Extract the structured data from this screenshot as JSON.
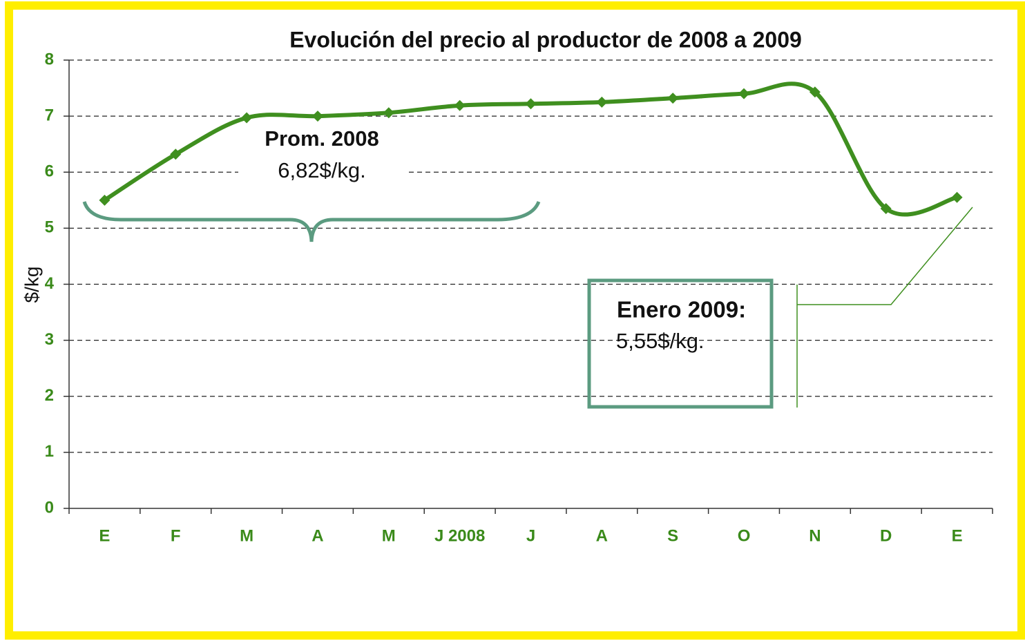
{
  "chart_data": {
    "type": "line",
    "title": "Evolución del precio al productor de 2008 a 2009",
    "y_label": "$/kg",
    "categories": [
      "E",
      "F",
      "M",
      "A",
      "M",
      "J 2008",
      "J",
      "A",
      "S",
      "O",
      "N",
      "D",
      "E"
    ],
    "series": [
      {
        "color": "#3f8f1f",
        "values": [
          5.5,
          6.32,
          6.97,
          7.0,
          7.06,
          7.19,
          7.22,
          7.25,
          7.32,
          7.4,
          7.43,
          5.35,
          5.55
        ]
      }
    ],
    "ylim": [
      0,
      8
    ],
    "yticks": [
      0,
      1,
      2,
      3,
      4,
      5,
      6,
      7,
      8
    ],
    "grid": true,
    "annotations": [
      "Prom. 2008",
      "6,82$/kg.",
      "Enero 2009:",
      "5,55$/kg."
    ]
  }
}
